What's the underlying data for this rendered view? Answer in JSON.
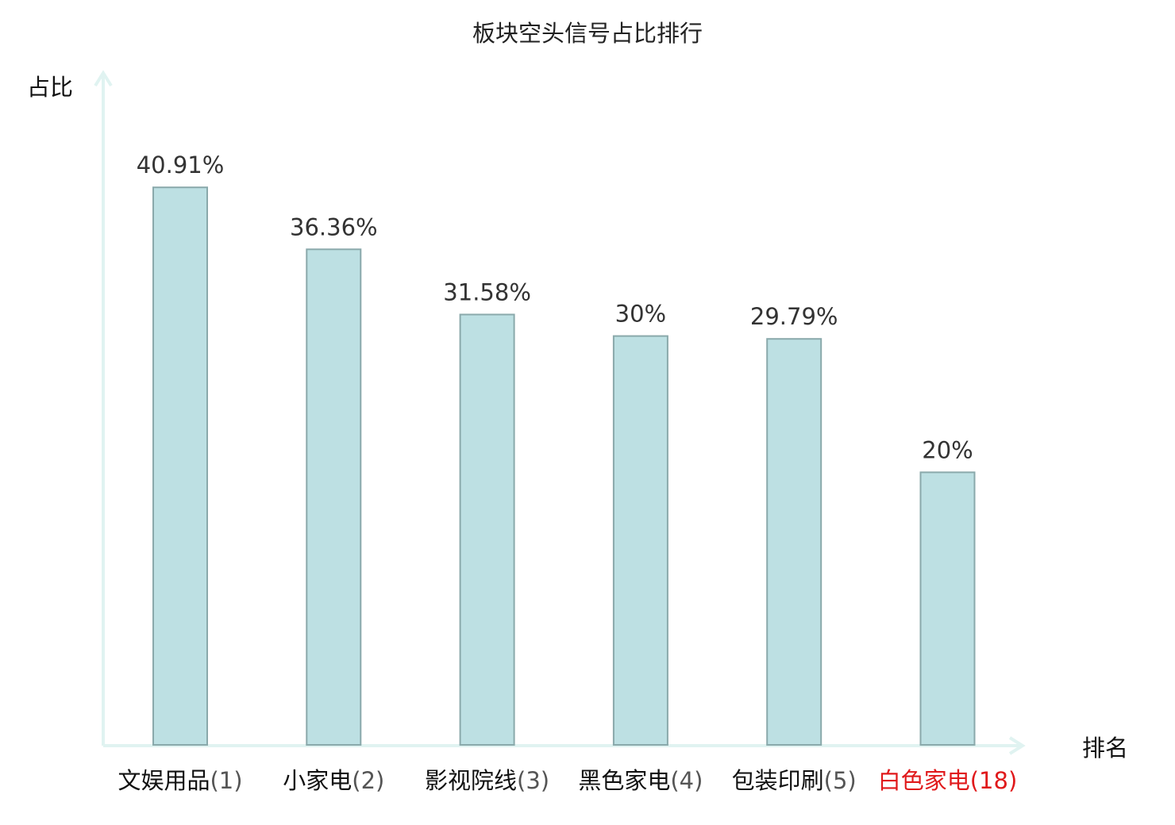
{
  "chart_data": {
    "type": "bar",
    "title": "板块空头信号占比排行",
    "ylabel": "占比",
    "xlabel": "排名",
    "ylim": [
      0,
      50
    ],
    "grid": false,
    "categories": [
      {
        "name": "文娱用品",
        "rank": "(1)"
      },
      {
        "name": "小家电",
        "rank": "(2)"
      },
      {
        "name": "影视院线",
        "rank": "(3)"
      },
      {
        "name": "黑色家电",
        "rank": "(4)"
      },
      {
        "name": "包装印刷",
        "rank": "(5)"
      },
      {
        "name": "白色家电",
        "rank": "(18)"
      }
    ],
    "values": [
      40.91,
      36.36,
      31.58,
      30,
      29.79,
      20
    ],
    "value_labels": [
      "40.91%",
      "36.36%",
      "31.58%",
      "30%",
      "29.79%",
      "20%"
    ],
    "highlight_index": 5,
    "colors": {
      "bar_fill": "#bde0e3",
      "bar_stroke": "#8aa9ab",
      "axis": "#e0f3f1",
      "highlight_text": "#e0191b",
      "normal_text": "#111111",
      "rank_text": "#555555"
    }
  }
}
